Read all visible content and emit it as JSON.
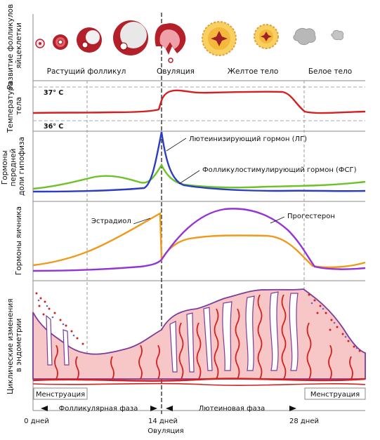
{
  "rows": {
    "follicles": "Развитие фолликулов яйцеклетки",
    "temperature": "Температура тела",
    "pituitary": "Гормоны передней доли гипофиза",
    "ovarian": "Гормоны яичника",
    "endometrium": "Циклические изменения в эндометрии"
  },
  "follicle_stages": {
    "growing": "Растущий фолликул",
    "ovulation": "Овуляция",
    "yellow_body": "Желтое тело",
    "white_body": "Белое тело"
  },
  "temperature_marks": {
    "high": "37° C",
    "low": "36° C"
  },
  "hormones": {
    "lh": "Лютеинизирующий гормон (ЛГ)",
    "fsh": "Фолликулостимулирующий гормон (ФСГ)",
    "estradiol": "Эстрадиол",
    "progesterone": "Прогестерон"
  },
  "phases": {
    "menstruation_left": "Менструация",
    "menstruation_right": "Менструация",
    "follicular": "Фолликулярная фаза",
    "luteal": "Лютеиновая фаза"
  },
  "timeline": {
    "day0": "0 дней",
    "day14": "14 дней",
    "day14_caption": "Овуляция",
    "day28": "28 дней"
  },
  "colors": {
    "temperature": "#d42020",
    "lh": "#2c3dc4",
    "fsh": "#6cc228",
    "estradiol": "#ee9a1c",
    "progesterone": "#9434d8",
    "endometrium_fill": "#f7c6c6",
    "vessel": "#d42020",
    "tissue_outline": "#7a3d9c"
  }
}
